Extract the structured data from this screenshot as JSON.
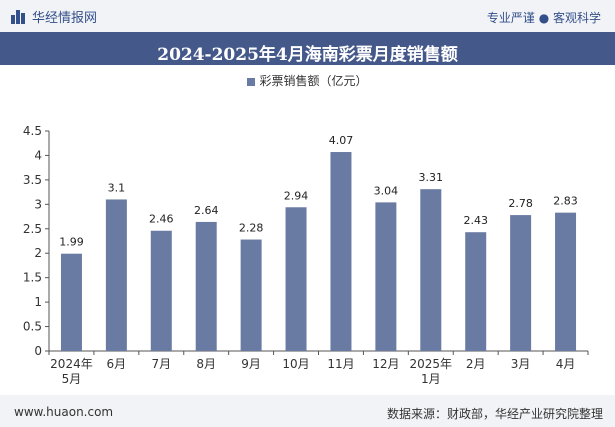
{
  "header": {
    "brand": "华经情报网",
    "tagline": "专业严谨 ● 客观科学"
  },
  "chart_data": {
    "type": "bar",
    "title": "2024-2025年4月海南彩票月度销售额",
    "categories": [
      "2024年5月",
      "6月",
      "7月",
      "8月",
      "9月",
      "10月",
      "11月",
      "12月",
      "2025年1月",
      "2月",
      "3月",
      "4月"
    ],
    "series": [
      {
        "name": "彩票销售额（亿元）",
        "values": [
          1.99,
          3.1,
          2.46,
          2.64,
          2.28,
          2.94,
          4.07,
          3.04,
          3.31,
          2.43,
          2.78,
          2.83
        ]
      }
    ],
    "value_labels": [
      "1.99",
      "3.1",
      "2.46",
      "2.64",
      "2.28",
      "2.94",
      "4.07",
      "3.04",
      "3.31",
      "2.43",
      "2.78",
      "2.83"
    ],
    "yticks": [
      "0",
      "0.5",
      "1",
      "1.5",
      "2",
      "2.5",
      "3",
      "3.5",
      "4",
      "4.5"
    ],
    "ylim": [
      0,
      4.5
    ],
    "grid": false,
    "legend_position": "top",
    "bar_color": "#6a7ba3"
  },
  "footer": {
    "website": "www.huaon.com",
    "source": "数据来源：财政部，华经产业研究院整理"
  }
}
